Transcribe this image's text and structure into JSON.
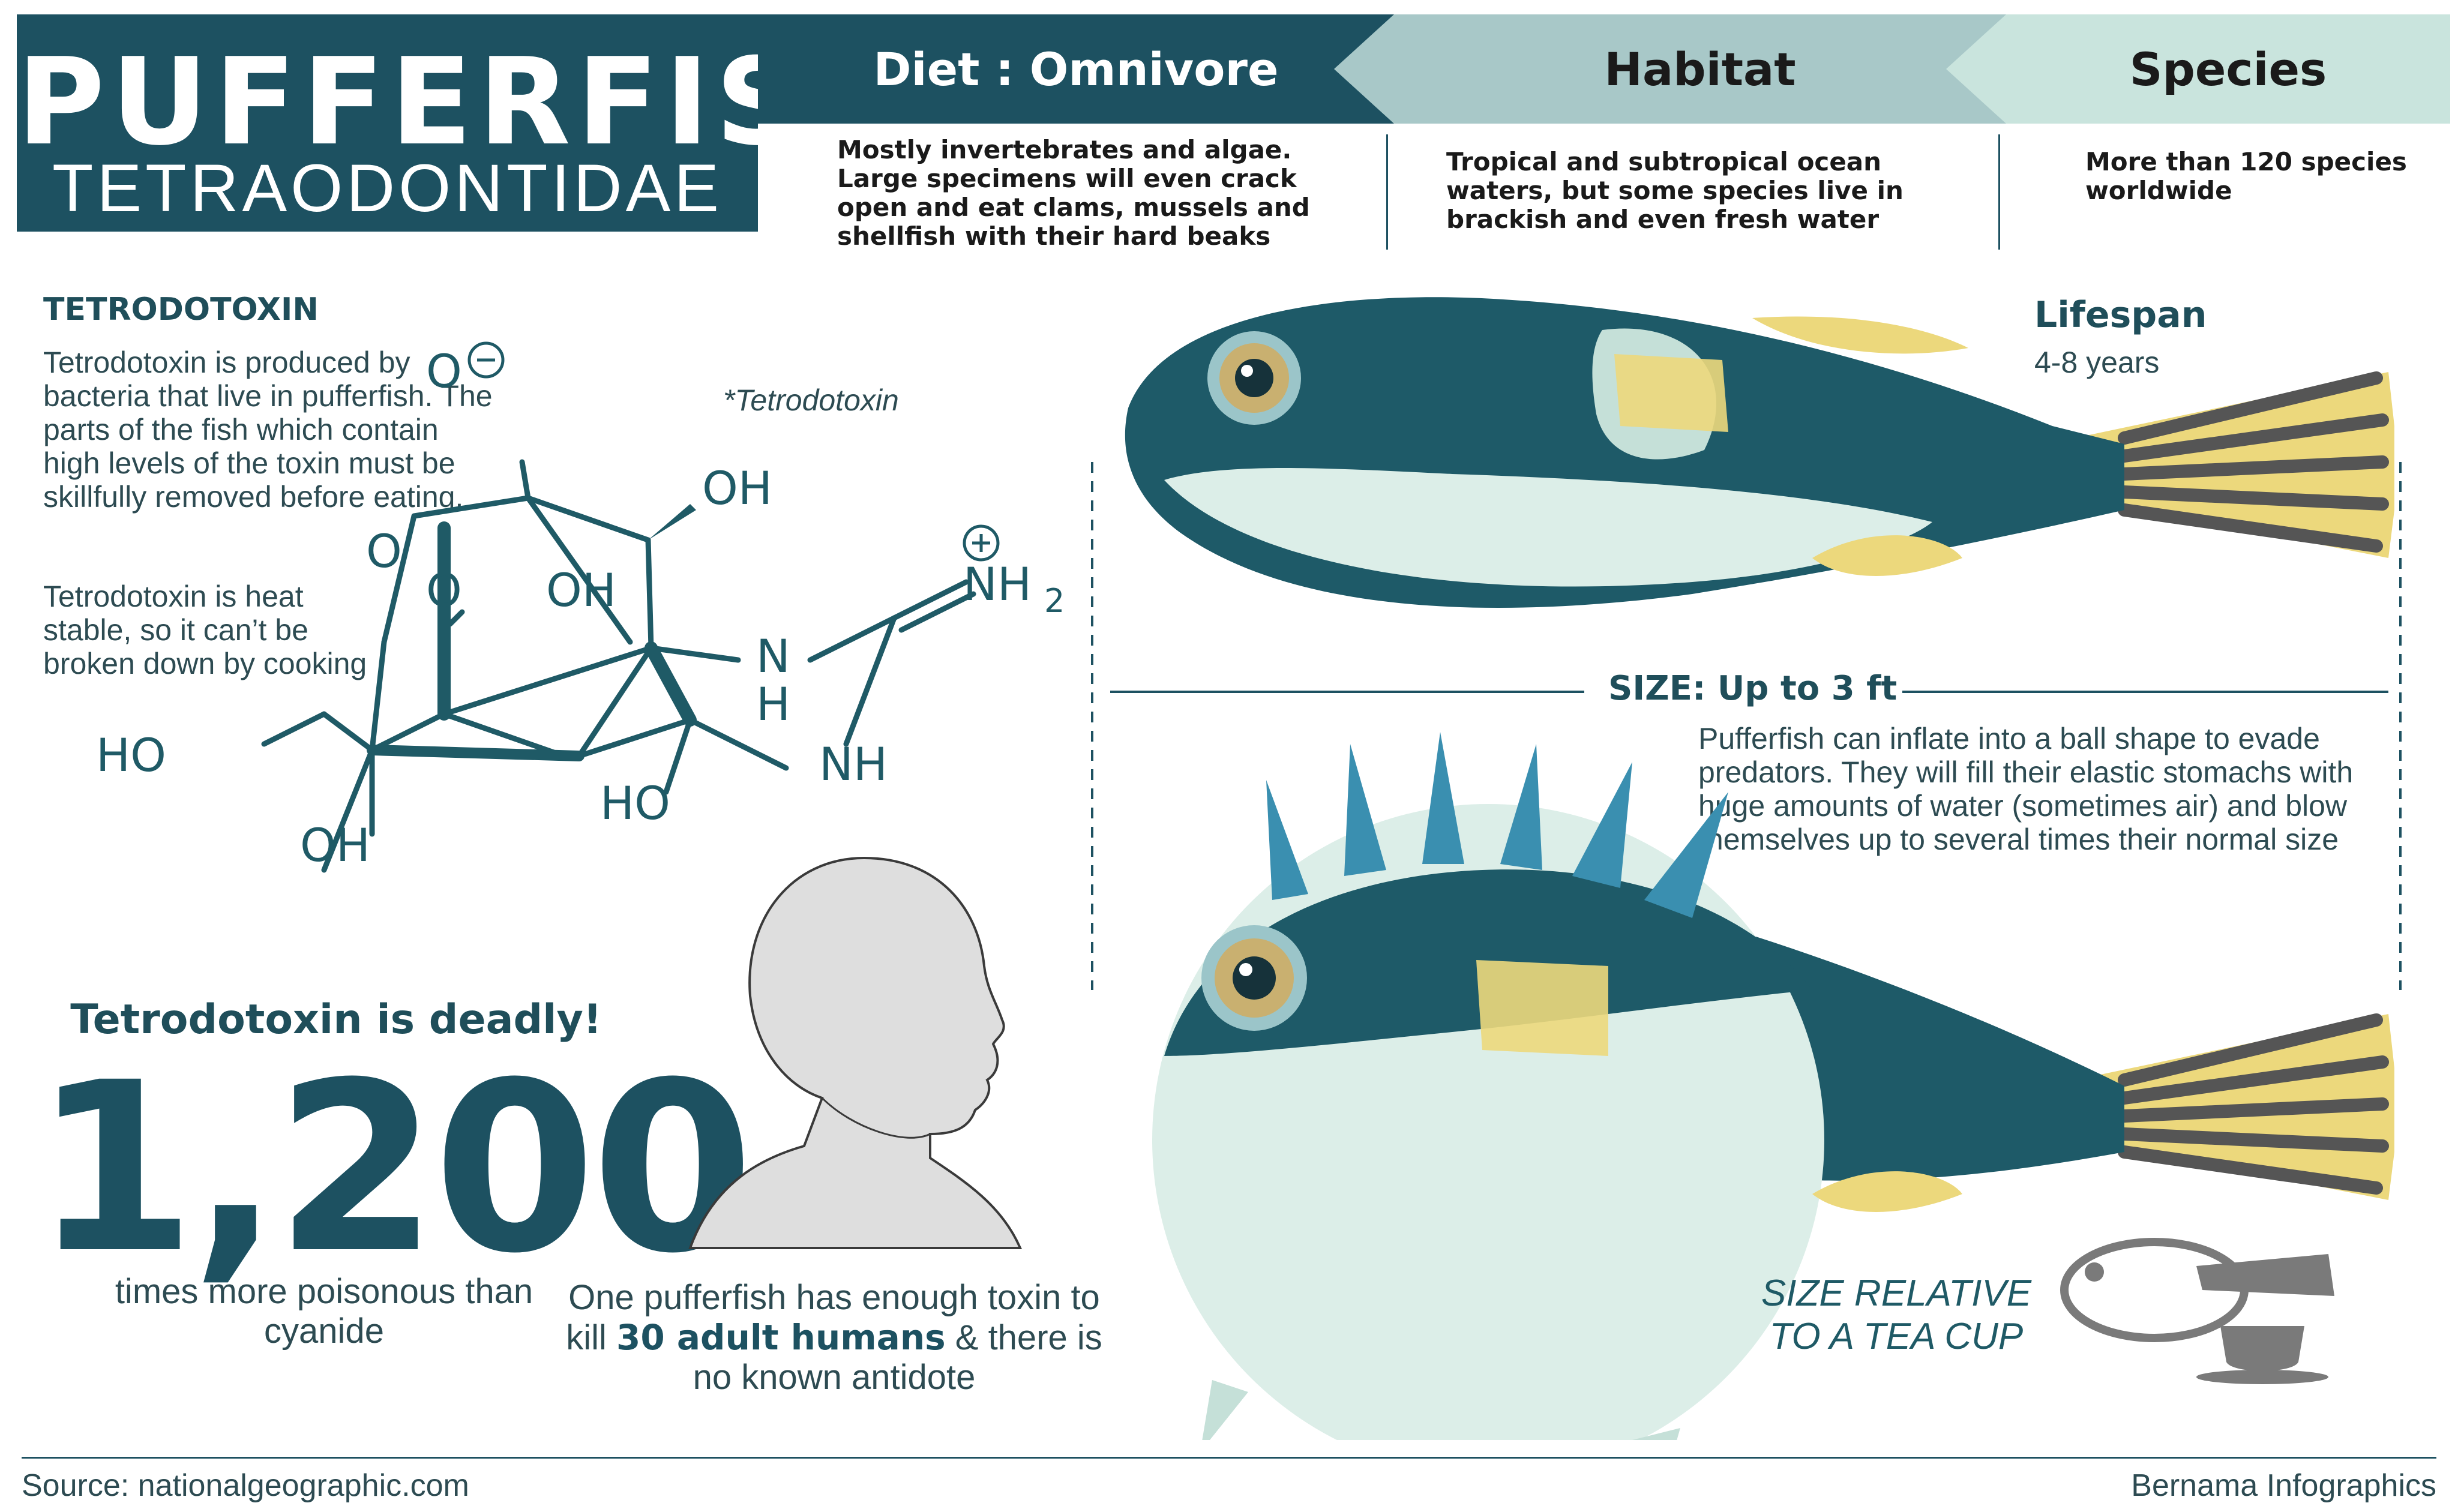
{
  "title": {
    "main": "PUFFERFISH",
    "sub": "TETRAODONTIDAE"
  },
  "tabs": {
    "diet": {
      "label": "Diet :  Omnivore",
      "text": "Mostly invertebrates and algae. Large specimens will even crack open and eat clams, mussels and shellfish with their hard beaks"
    },
    "habitat": {
      "label": "Habitat",
      "text": "Tropical and subtropical ocean waters, but some species live in brackish and even fresh water"
    },
    "species": {
      "label": "Species",
      "text": "More than 120 species worldwide"
    }
  },
  "toxin": {
    "heading": "TETRODOTOXIN",
    "para1": "Tetrodotoxin is produced by bacteria that live in pufferfish. The parts of the fish which contain high levels of the toxin must be skillfully removed before eating.",
    "para2": "Tetrodotoxin is heat stable, so it can’t be broken down by cooking",
    "molecule_caption": "*Tetrodotoxin",
    "molecule_labels": {
      "o_minus": "O",
      "oh": "OH",
      "o": "O",
      "nh2": "NH",
      "nh2_sub": "2",
      "n": "N",
      "h": "H",
      "nh": "NH",
      "ho": "HO"
    }
  },
  "deadly": {
    "heading": "Tetrodotoxin is deadly!",
    "number": "1,200",
    "number_caption": "times more poisonous than cyanide",
    "human_text_1": "One pufferfish has enough toxin to kill",
    "human_text_bold": "30 adult humans",
    "human_text_2": "& there is no known antidote"
  },
  "lifespan": {
    "heading": "Lifespan",
    "value": "4-8 years"
  },
  "size": {
    "heading": "SIZE: Up to 3 ft",
    "text": "Pufferfish can inflate into a ball shape to evade predators. They will fill their elastic stomachs with huge amounts of water (sometimes air) and blow themselves up to several times their normal size"
  },
  "teacup": {
    "line1": "SIZE RELATIVE",
    "line2": "TO A TEA CUP"
  },
  "footer": {
    "source": "Source: nationalgeographic.com",
    "credit": "Bernama Infographics"
  },
  "colors": {
    "teal_dark": "#1d5161",
    "teal_mid": "#a8c8c8",
    "teal_light": "#c9e4dd",
    "fish_body": "#1e5a68",
    "fish_belly": "#dceee8",
    "fin_yellow": "#ecd87c"
  }
}
